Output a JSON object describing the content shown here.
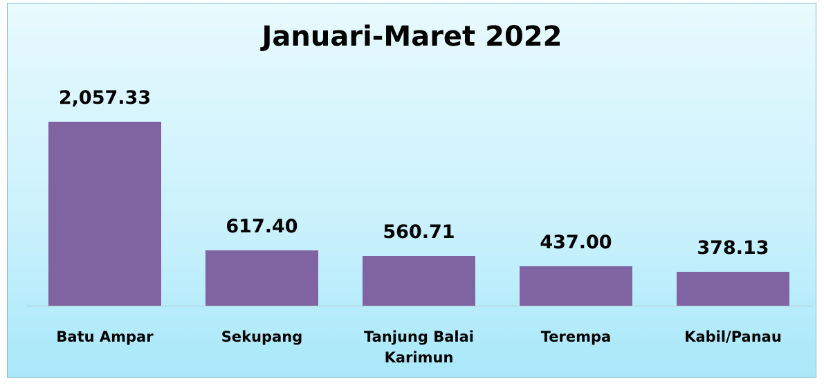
{
  "chart_data": {
    "type": "bar",
    "title": "Januari-Maret 2022",
    "categories": [
      "Batu Ampar",
      "Sekupang",
      "Tanjung Balai Karimun",
      "Terempa",
      "Kabil/Panau"
    ],
    "values": [
      2057.33,
      617.4,
      560.71,
      437,
      378.13
    ],
    "value_labels": [
      "2,057.33",
      "617.40",
      "560.71",
      "437.00",
      "378.13"
    ],
    "color": "#8064a2"
  }
}
